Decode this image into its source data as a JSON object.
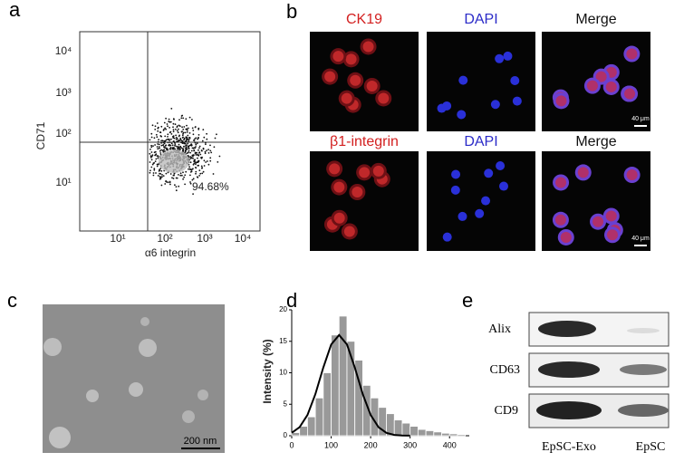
{
  "panels": [
    "a",
    "b",
    "c",
    "d",
    "e"
  ],
  "flow": {
    "y_label": "CD71",
    "x_label": "α6 integrin",
    "yticks": [
      "10⁴",
      "10³",
      "10²",
      "10¹"
    ],
    "xticks": [
      "10¹",
      "10²",
      "10³",
      "10⁴"
    ],
    "percentage": "94.68%"
  },
  "fluorescence": {
    "rows": [
      [
        "CK19",
        "DAPI",
        "Merge"
      ],
      [
        "β1-integrin",
        "DAPI",
        "Merge"
      ]
    ],
    "scale_bars": [
      "40 μm",
      "40 μm"
    ]
  },
  "tem": {
    "scale_bar": "200 nm"
  },
  "chart_data": {
    "type": "histogram",
    "y_label": "Intensity (%)",
    "color": "#999999",
    "bins": [
      0,
      20,
      40,
      60,
      80,
      100,
      120,
      140,
      160,
      180,
      200,
      220,
      240,
      260,
      280,
      300,
      320,
      340,
      360,
      380,
      400,
      420,
      440
    ],
    "values": [
      0.5,
      1.5,
      3,
      6,
      10,
      16,
      19,
      15,
      12,
      8,
      6,
      4.5,
      3.5,
      2.5,
      2,
      1.5,
      1,
      0.8,
      0.6,
      0.4,
      0.3,
      0.2
    ],
    "curve": {
      "x": [
        0,
        20,
        40,
        60,
        80,
        100,
        120,
        140,
        160,
        180,
        200,
        220,
        240,
        260,
        280,
        300
      ],
      "values": [
        0.46,
        1.36,
        3.3,
        6.6,
        10.8,
        14.5,
        16,
        14.5,
        10.8,
        6.6,
        3.3,
        1.36,
        0.46,
        0.13,
        0.03,
        0.01
      ]
    },
    "xlim": [
      0,
      450
    ],
    "ylim": [
      0,
      20
    ],
    "xticks": [
      0,
      100,
      200,
      300,
      400
    ],
    "yticks": [
      0,
      5,
      10,
      15,
      20
    ]
  },
  "western": {
    "proteins": [
      "Alix",
      "CD63",
      "CD9"
    ],
    "samples": [
      "EpSC-Exo",
      "EpSC"
    ]
  }
}
